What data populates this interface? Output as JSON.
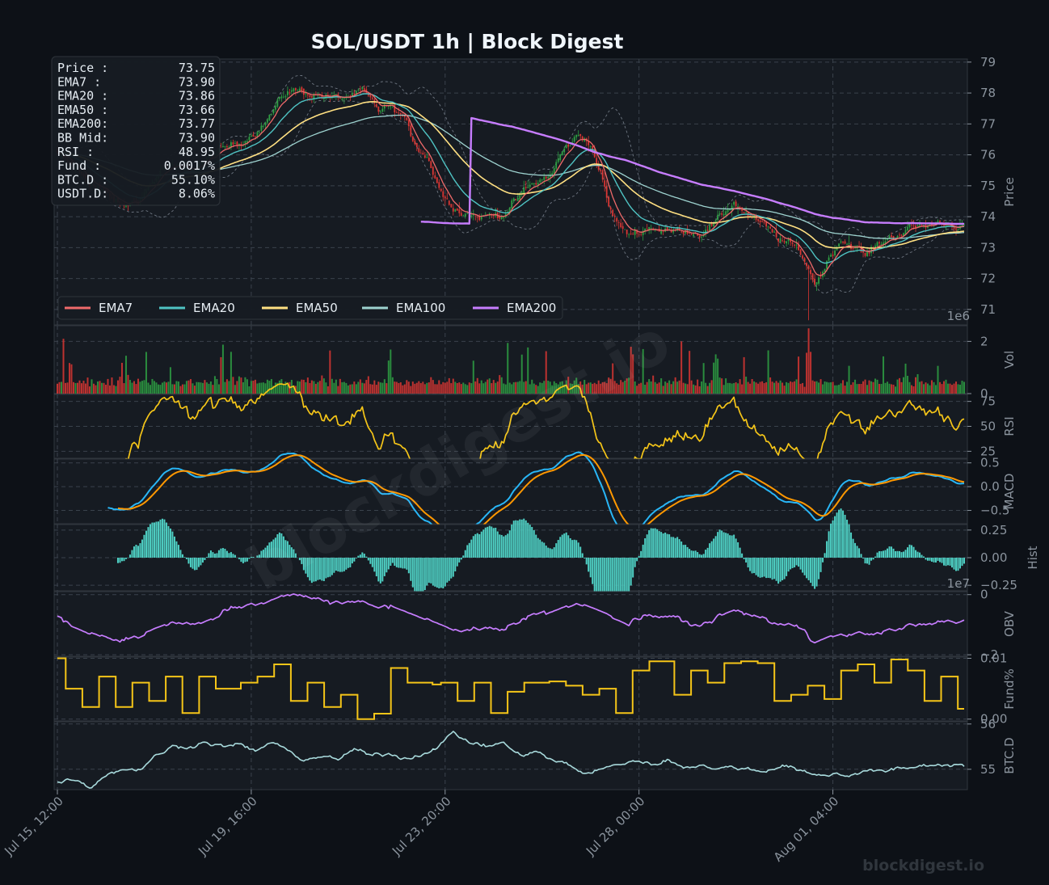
{
  "header": {
    "title": "SOL/USDT  1h  |  Block Digest"
  },
  "watermark": "blockdigest.io",
  "brand": "blockdigest.io",
  "info_box": [
    {
      "label": "Price :",
      "value": "73.75"
    },
    {
      "label": "EMA7  :",
      "value": "73.90"
    },
    {
      "label": "EMA20 :",
      "value": "73.86"
    },
    {
      "label": "EMA50 :",
      "value": "73.66"
    },
    {
      "label": "EMA200:",
      "value": "73.77"
    },
    {
      "label": "BB Mid:",
      "value": "73.90"
    },
    {
      "label": "RSI   :",
      "value": "48.95"
    },
    {
      "label": "Fund  :",
      "value": "0.0017%"
    },
    {
      "label": "BTC.D :",
      "value": "55.10%"
    },
    {
      "label": "USDT.D:",
      "value": "8.06%"
    }
  ],
  "colors": {
    "ema7": "#ef6a6a",
    "ema20": "#4fc3c3",
    "ema50": "#ffe082",
    "ema100": "#9ed3d0",
    "ema200": "#c77dff",
    "up": "#2ea043",
    "down": "#da3633",
    "rsi": "#f5c518",
    "macd": "#29b6f6",
    "signal": "#ff9800",
    "hist": "#4fd1c5",
    "obv": "#c77dff",
    "fund": "#f5c518",
    "btcd": "#a8dadc"
  },
  "chart_data": {
    "type": "line",
    "x_ticks": [
      "Jul 15, 12:00",
      "Jul 19, 16:00",
      "Jul 23, 20:00",
      "Jul 28, 00:00",
      "Aug 01, 04:00"
    ],
    "legend": {
      "position": "lower-left",
      "entries": [
        {
          "name": "EMA7",
          "color": "#ef6a6a"
        },
        {
          "name": "EMA20",
          "color": "#4fc3c3"
        },
        {
          "name": "EMA50",
          "color": "#ffe082"
        },
        {
          "name": "EMA100",
          "color": "#9ed3d0"
        },
        {
          "name": "EMA200",
          "color": "#c77dff"
        }
      ]
    },
    "panels": {
      "price": {
        "ylabel": "Price",
        "ylim": [
          70.5,
          79.1
        ],
        "ticks": [
          "71",
          "72",
          "73",
          "74",
          "75",
          "76",
          "77",
          "78",
          "79"
        ],
        "anchors_close": [
          [
            0,
            76.0
          ],
          [
            0.02,
            75.6
          ],
          [
            0.05,
            74.9
          ],
          [
            0.08,
            74.3
          ],
          [
            0.1,
            74.6
          ],
          [
            0.13,
            75.6
          ],
          [
            0.16,
            75.5
          ],
          [
            0.19,
            76.0
          ],
          [
            0.22,
            76.4
          ],
          [
            0.25,
            77.0
          ],
          [
            0.28,
            78.1
          ],
          [
            0.31,
            78.0
          ],
          [
            0.34,
            77.8
          ],
          [
            0.37,
            78.0
          ],
          [
            0.39,
            77.4
          ],
          [
            0.4,
            77.6
          ],
          [
            0.42,
            77.2
          ],
          [
            0.43,
            76.5
          ],
          [
            0.45,
            75.9
          ],
          [
            0.46,
            75.2
          ],
          [
            0.47,
            74.6
          ],
          [
            0.49,
            74.2
          ],
          [
            0.51,
            74.0
          ],
          [
            0.54,
            74.1
          ],
          [
            0.57,
            74.9
          ],
          [
            0.6,
            75.4
          ],
          [
            0.61,
            76.0
          ],
          [
            0.63,
            76.6
          ],
          [
            0.645,
            76.5
          ],
          [
            0.66,
            75.3
          ],
          [
            0.67,
            74.2
          ],
          [
            0.69,
            73.4
          ],
          [
            0.72,
            73.7
          ],
          [
            0.74,
            73.5
          ],
          [
            0.76,
            73.6
          ],
          [
            0.78,
            73.5
          ],
          [
            0.8,
            73.8
          ],
          [
            0.82,
            74.5
          ],
          [
            0.84,
            74.0
          ],
          [
            0.86,
            73.6
          ],
          [
            0.88,
            73.2
          ],
          [
            0.9,
            72.9
          ],
          [
            0.91,
            72.4
          ],
          [
            0.92,
            71.8
          ],
          [
            0.93,
            72.4
          ],
          [
            0.95,
            73.3
          ],
          [
            0.97,
            73.0
          ],
          [
            0.98,
            72.7
          ],
          [
            1,
            73.2
          ],
          [
            1.03,
            73.6
          ],
          [
            1.07,
            73.8
          ],
          [
            1.1,
            73.75
          ]
        ],
        "anchors_ema200": [
          [
            0.5,
            77.3
          ],
          [
            0.55,
            77.0
          ],
          [
            0.6,
            76.6
          ],
          [
            0.65,
            76.1
          ],
          [
            0.69,
            75.9
          ],
          [
            0.73,
            75.5
          ],
          [
            0.78,
            75.1
          ],
          [
            0.82,
            74.85
          ],
          [
            0.86,
            74.6
          ],
          [
            0.9,
            74.3
          ],
          [
            0.94,
            74.0
          ],
          [
            0.98,
            73.85
          ],
          [
            1.02,
            73.8
          ],
          [
            1.1,
            73.77
          ]
        ]
      },
      "volume": {
        "ylabel": "Vol",
        "ylim": [
          0,
          2600000
        ],
        "ticks": [
          "0",
          "2"
        ],
        "exp": "1e6"
      },
      "rsi": {
        "ylabel": "RSI",
        "ylim": [
          18,
          82
        ],
        "ticks": [
          "25",
          "50",
          "75"
        ]
      },
      "macd": {
        "ylabel": "MACD",
        "ylim": [
          -0.78,
          0.58
        ],
        "ticks": [
          "−0.5",
          "0.0",
          "0.5"
        ]
      },
      "hist": {
        "ylabel": "Hist",
        "ylim": [
          -0.3,
          0.3
        ],
        "ticks": [
          "−0.25",
          "0.00",
          "0.25"
        ]
      },
      "obv": {
        "ylabel": "OBV",
        "ylim": [
          -2.05,
          0.1
        ],
        "ticks": [
          "0",
          "−2"
        ],
        "exp": "1e7"
      },
      "funding": {
        "ylabel": "Fund%",
        "ylim": [
          -0.0003,
          0.0102
        ],
        "ticks": [
          "0.00",
          "0.01"
        ],
        "steps": [
          0.01,
          0.005,
          0.005,
          0.002,
          0.002,
          0.007,
          0.007,
          0.002,
          0.002,
          0.006,
          0.006,
          0.003,
          0.003,
          0.007,
          0.007,
          0.001,
          0.001,
          0.007,
          0.007,
          0.005,
          0.005,
          0.005,
          0.006,
          0.006,
          0.007,
          0.007,
          0.009,
          0.009,
          0.003,
          0.003,
          0.006,
          0.006,
          0.002,
          0.002,
          0.004,
          0.004,
          0.0,
          0.0,
          0.0009,
          0.0009,
          0.0084,
          0.0084,
          0.006,
          0.006,
          0.006,
          0.0057,
          0.006,
          0.006,
          0.003,
          0.003,
          0.006,
          0.006,
          0.001,
          0.001,
          0.0045,
          0.0045,
          0.006,
          0.006,
          0.006,
          0.0062,
          0.0062,
          0.0055,
          0.0055,
          0.004,
          0.004,
          0.005,
          0.005,
          0.001,
          0.001,
          0.008,
          0.008,
          0.0095,
          0.0095,
          0.0095,
          0.004,
          0.004,
          0.008,
          0.008,
          0.006,
          0.006,
          0.0092,
          0.0092,
          0.0095,
          0.0095,
          0.0092,
          0.0092,
          0.003,
          0.003,
          0.004,
          0.004,
          0.0055,
          0.0055,
          0.0033,
          0.0033,
          0.008,
          0.008,
          0.009,
          0.009,
          0.006,
          0.006,
          0.0098,
          0.0098,
          0.008,
          0.008,
          0.003,
          0.003,
          0.007,
          0.007,
          0.0017
        ]
      },
      "btcd": {
        "ylabel": "BTC.D",
        "ylim": [
          54.55,
          56.05
        ],
        "ticks": [
          "55",
          "56"
        ],
        "anchors": [
          [
            0,
            54.7
          ],
          [
            0.02,
            54.8
          ],
          [
            0.04,
            54.6
          ],
          [
            0.06,
            54.9
          ],
          [
            0.08,
            55.0
          ],
          [
            0.1,
            55.0
          ],
          [
            0.12,
            55.3
          ],
          [
            0.14,
            55.5
          ],
          [
            0.16,
            55.5
          ],
          [
            0.18,
            55.6
          ],
          [
            0.2,
            55.5
          ],
          [
            0.22,
            55.55
          ],
          [
            0.24,
            55.4
          ],
          [
            0.26,
            55.6
          ],
          [
            0.28,
            55.4
          ],
          [
            0.3,
            55.2
          ],
          [
            0.32,
            55.3
          ],
          [
            0.34,
            55.2
          ],
          [
            0.36,
            55.45
          ],
          [
            0.38,
            55.3
          ],
          [
            0.4,
            55.35
          ],
          [
            0.42,
            55.25
          ],
          [
            0.44,
            55.3
          ],
          [
            0.46,
            55.5
          ],
          [
            0.48,
            55.8
          ],
          [
            0.5,
            55.6
          ],
          [
            0.52,
            55.5
          ],
          [
            0.54,
            55.6
          ],
          [
            0.56,
            55.3
          ],
          [
            0.58,
            55.4
          ],
          [
            0.6,
            55.2
          ],
          [
            0.62,
            55.1
          ],
          [
            0.64,
            54.9
          ],
          [
            0.66,
            55.0
          ],
          [
            0.68,
            55.1
          ],
          [
            0.7,
            55.2
          ],
          [
            0.72,
            55.1
          ],
          [
            0.74,
            55.2
          ],
          [
            0.76,
            55.05
          ],
          [
            0.78,
            55.1
          ],
          [
            0.8,
            55.0
          ],
          [
            0.82,
            55.05
          ],
          [
            0.84,
            55.0
          ],
          [
            0.86,
            54.95
          ],
          [
            0.88,
            55.1
          ],
          [
            0.9,
            55.0
          ],
          [
            0.92,
            54.85
          ],
          [
            0.94,
            54.9
          ],
          [
            0.96,
            54.85
          ],
          [
            0.98,
            55.0
          ],
          [
            1.0,
            54.95
          ],
          [
            1.02,
            55.0
          ],
          [
            1.04,
            55.05
          ],
          [
            1.06,
            55.1
          ],
          [
            1.08,
            55.1
          ],
          [
            1.1,
            55.1
          ]
        ]
      }
    }
  }
}
